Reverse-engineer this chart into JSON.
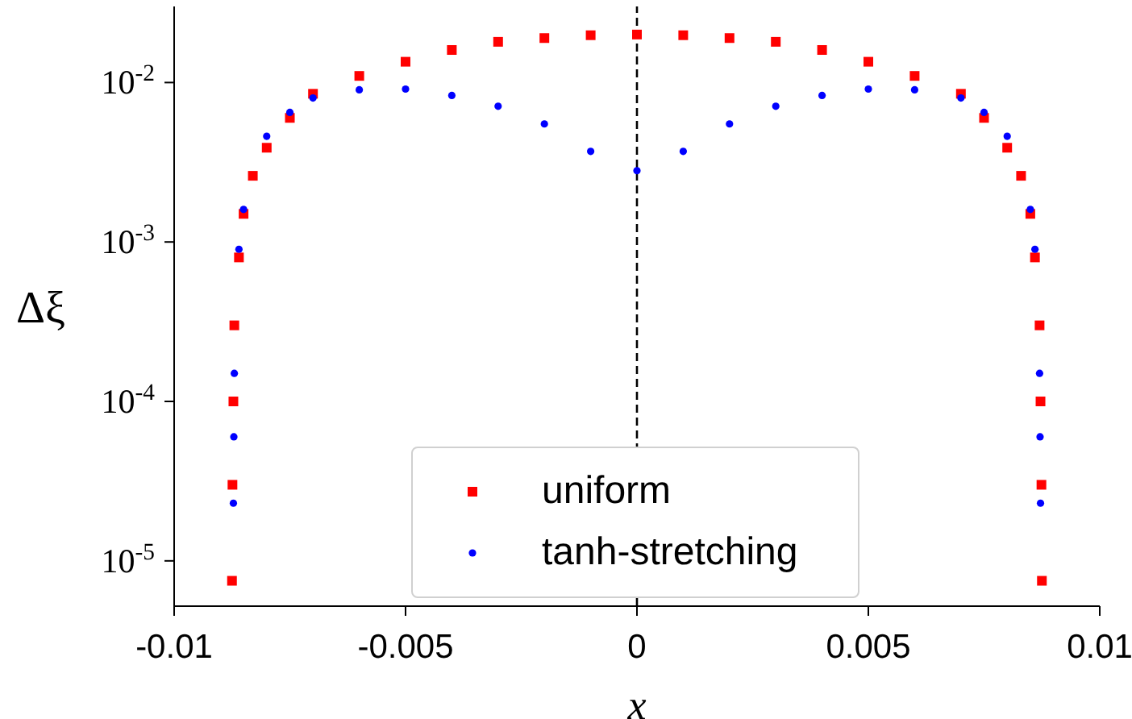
{
  "chart_data": {
    "type": "scatter",
    "xlabel": "x",
    "ylabel": "Δξ",
    "log": "y",
    "xlim": [
      -0.01,
      0.01
    ],
    "xticks": [
      -0.01,
      -0.005,
      0,
      0.005,
      0.01
    ],
    "ylim": [
      5.2e-06,
      0.03
    ],
    "yticks": [
      {
        "value": 1e-05,
        "label": "10$^{-5}$"
      },
      {
        "value": 0.0001,
        "label": "10$^{-4}$"
      },
      {
        "value": 0.001,
        "label": "10$^{-3}$"
      },
      {
        "value": 0.01,
        "label": "10$^{-2}$"
      }
    ],
    "grid": false,
    "legend": "bottom",
    "ref_lines": [
      {
        "axis": "x",
        "value": 0,
        "color": "#000000",
        "line_style": "dashed"
      }
    ],
    "series": [
      {
        "name": "uniform",
        "color": "#ff0000",
        "marker": "square",
        "x": [
          -0.00875,
          -0.00874,
          -0.00872,
          -0.0087,
          -0.0086,
          -0.0085,
          -0.0083,
          -0.008,
          -0.0075,
          -0.007,
          -0.006,
          -0.005,
          -0.004,
          -0.003,
          -0.002,
          -0.001,
          0,
          0.001,
          0.002,
          0.003,
          0.004,
          0.005,
          0.006,
          0.007,
          0.0075,
          0.008,
          0.0083,
          0.0085,
          0.0086,
          0.0087,
          0.00872,
          0.00874,
          0.00875
        ],
        "values": [
          7.5e-06,
          3e-05,
          0.0001,
          0.0003,
          0.0008,
          0.0015,
          0.0026,
          0.0039,
          0.006,
          0.0085,
          0.011,
          0.0135,
          0.016,
          0.018,
          0.019,
          0.0198,
          0.02,
          0.0198,
          0.019,
          0.018,
          0.016,
          0.0135,
          0.011,
          0.0085,
          0.006,
          0.0039,
          0.0026,
          0.0015,
          0.0008,
          0.0003,
          0.0001,
          3e-05,
          7.5e-06
        ]
      },
      {
        "name": "tanh-stretching",
        "color": "#0000ff",
        "marker": "circle",
        "x": [
          -0.00872,
          -0.00871,
          -0.0087,
          -0.0086,
          -0.0085,
          -0.008,
          -0.0075,
          -0.007,
          -0.006,
          -0.005,
          -0.004,
          -0.003,
          -0.002,
          -0.001,
          0,
          0.001,
          0.002,
          0.003,
          0.004,
          0.005,
          0.006,
          0.007,
          0.0075,
          0.008,
          0.0085,
          0.0086,
          0.0087,
          0.00871,
          0.00872
        ],
        "values": [
          2.3e-05,
          6e-05,
          0.00015,
          0.0009,
          0.0016,
          0.0046,
          0.0065,
          0.008,
          0.009,
          0.0091,
          0.0083,
          0.0071,
          0.0055,
          0.0037,
          0.0028,
          0.0037,
          0.0055,
          0.0071,
          0.0083,
          0.0091,
          0.009,
          0.008,
          0.0065,
          0.0046,
          0.0016,
          0.0009,
          0.00015,
          6e-05,
          2.3e-05
        ]
      }
    ]
  }
}
